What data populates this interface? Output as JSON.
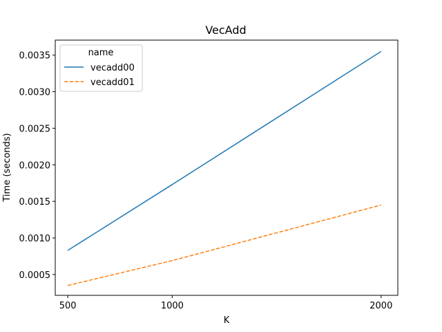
{
  "chart_data": {
    "type": "line",
    "title": "VecAdd",
    "xlabel": "K",
    "ylabel": "Time (seconds)",
    "x": [
      500,
      1000,
      2000
    ],
    "xlim": [
      440,
      2080
    ],
    "ylim": [
      0.000215,
      0.003705
    ],
    "xticks": [
      500,
      1000,
      2000
    ],
    "xtick_labels": [
      "500",
      "1000",
      "2000"
    ],
    "yticks": [
      0.0005,
      0.001,
      0.0015,
      0.002,
      0.0025,
      0.003,
      0.0035
    ],
    "ytick_labels": [
      "0.0005",
      "0.0010",
      "0.0015",
      "0.0020",
      "0.0025",
      "0.0030",
      "0.0035"
    ],
    "series": [
      {
        "name": "vecadd00",
        "values": [
          0.00083,
          0.00173,
          0.00355
        ],
        "color": "#1f77b4",
        "dash": "solid"
      },
      {
        "name": "vecadd01",
        "values": [
          0.00035,
          0.00069,
          0.00145
        ],
        "color": "#ff7f0e",
        "dash": "dashed"
      }
    ],
    "legend": {
      "title": "name",
      "position": "top-left"
    },
    "grid": false
  }
}
